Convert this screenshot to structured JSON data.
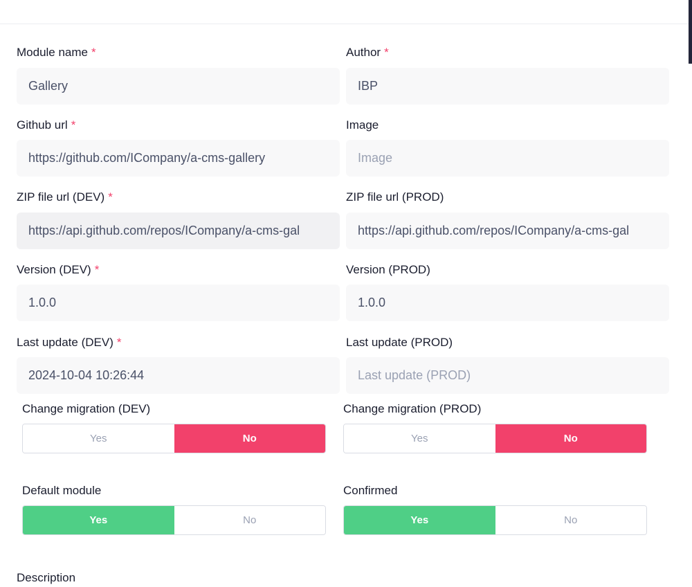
{
  "fields": {
    "module_name": {
      "label": "Module name",
      "required_mark": "*",
      "value": "Gallery"
    },
    "author": {
      "label": "Author",
      "required_mark": "*",
      "value": "IBP"
    },
    "github_url": {
      "label": "Github url",
      "required_mark": "*",
      "value": "https://github.com/ICompany/a-cms-gallery"
    },
    "image": {
      "label": "Image",
      "value": "",
      "placeholder": "Image"
    },
    "zip_dev": {
      "label": "ZIP file url (DEV)",
      "required_mark": "*",
      "value": "https://api.github.com/repos/ICompany/a-cms-gal"
    },
    "zip_prod": {
      "label": "ZIP file url (PROD)",
      "value": "https://api.github.com/repos/ICompany/a-cms-gal"
    },
    "version_dev": {
      "label": "Version (DEV)",
      "required_mark": "*",
      "value": "1.0.0"
    },
    "version_prod": {
      "label": "Version (PROD)",
      "value": "1.0.0"
    },
    "last_update_dev": {
      "label": "Last update (DEV)",
      "required_mark": "*",
      "value": "2024-10-04 10:26:44"
    },
    "last_update_prod": {
      "label": "Last update (PROD)",
      "value": "",
      "placeholder": "Last update (PROD)"
    }
  },
  "toggles": {
    "change_migration_dev": {
      "label": "Change migration (DEV)",
      "yes": "Yes",
      "no": "No",
      "selected": "No"
    },
    "change_migration_prod": {
      "label": "Change migration (PROD)",
      "yes": "Yes",
      "no": "No",
      "selected": "No"
    },
    "default_module": {
      "label": "Default module",
      "yes": "Yes",
      "no": "No",
      "selected": "Yes"
    },
    "confirmed": {
      "label": "Confirmed",
      "yes": "Yes",
      "no": "No",
      "selected": "Yes"
    }
  },
  "description": {
    "label": "Description"
  },
  "colors": {
    "required": "#f2416b",
    "toggle_no_active": "#f2416b",
    "toggle_yes_active": "#4fcf86",
    "input_bg": "#f8f8f9"
  }
}
